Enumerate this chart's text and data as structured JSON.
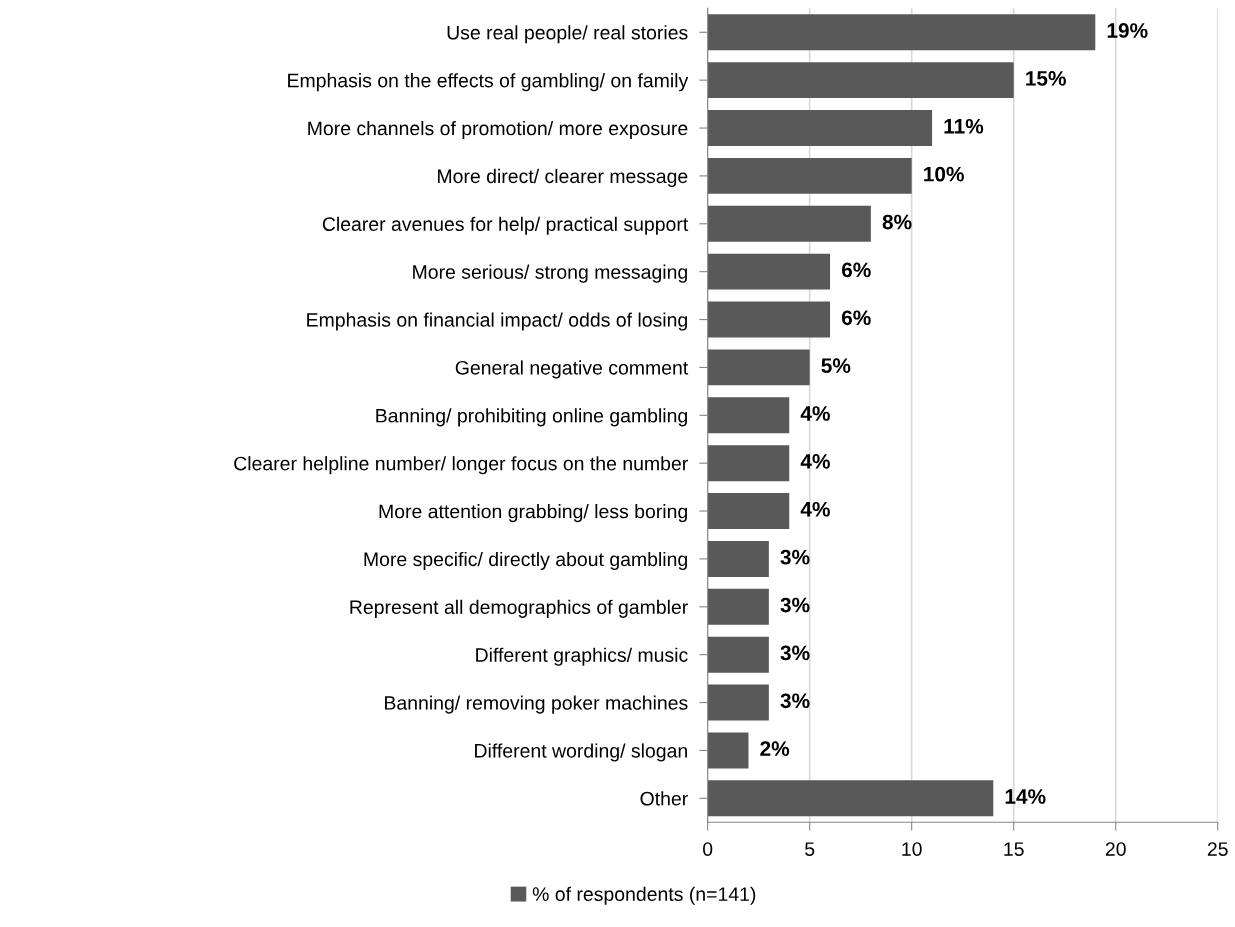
{
  "chart_data": {
    "type": "bar",
    "orientation": "horizontal",
    "categories": [
      "Use real people/ real stories",
      "Emphasis on the effects of gambling/ on family",
      "More channels of promotion/ more exposure",
      "More direct/ clearer message",
      "Clearer avenues for help/ practical support",
      "More serious/ strong messaging",
      "Emphasis on financial impact/ odds of losing",
      "General negative comment",
      "Banning/ prohibiting online gambling",
      "Clearer helpline number/ longer focus on the number",
      "More attention grabbing/ less boring",
      "More specific/ directly about gambling",
      "Represent all demographics of gambler",
      "Different graphics/ music",
      "Banning/ removing poker machines",
      "Different wording/ slogan",
      "Other"
    ],
    "series": [
      {
        "name": "% of respondents (n=141)",
        "color": "#595959",
        "values": [
          19,
          15,
          11,
          10,
          8,
          6,
          6,
          5,
          4,
          4,
          4,
          3,
          3,
          3,
          3,
          2,
          14
        ],
        "value_labels": [
          "19%",
          "15%",
          "11%",
          "10%",
          "8%",
          "6%",
          "6%",
          "5%",
          "4%",
          "4%",
          "4%",
          "3%",
          "3%",
          "3%",
          "3%",
          "2%",
          "14%"
        ]
      }
    ],
    "xlim": [
      0,
      25
    ],
    "xticks": [
      0,
      5,
      10,
      15,
      20,
      25
    ],
    "grid": "x",
    "legend": "bottom"
  }
}
